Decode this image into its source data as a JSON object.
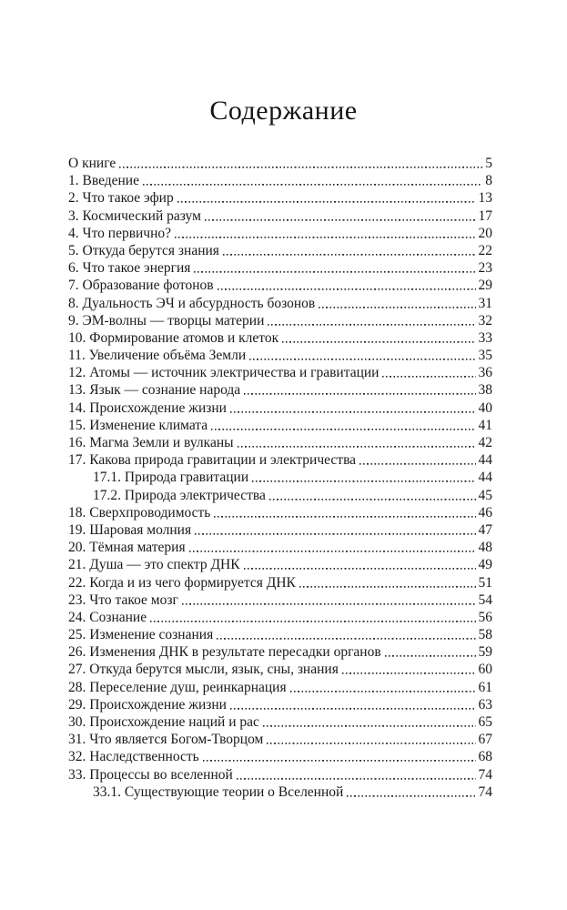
{
  "page": {
    "title": "Содержание"
  },
  "toc": {
    "entries": [
      {
        "label": "О книге",
        "page": "5",
        "indent": false
      },
      {
        "label": "1. Введение",
        "page": "8",
        "indent": false
      },
      {
        "label": "2. Что такое эфир",
        "page": "13",
        "indent": false
      },
      {
        "label": "3. Космический разум",
        "page": "17",
        "indent": false
      },
      {
        "label": "4. Что первично?",
        "page": "20",
        "indent": false
      },
      {
        "label": "5. Откуда берутся знания",
        "page": "22",
        "indent": false
      },
      {
        "label": "6. Что такое энергия",
        "page": "23",
        "indent": false
      },
      {
        "label": "7. Образование фотонов",
        "page": "29",
        "indent": false
      },
      {
        "label": "8. Дуальность ЭЧ и абсурдность бозонов",
        "page": "31",
        "indent": false
      },
      {
        "label": "9. ЭМ-волны — творцы материи",
        "page": "32",
        "indent": false
      },
      {
        "label": "10. Формирование атомов и клеток",
        "page": "33",
        "indent": false
      },
      {
        "label": "11. Увеличение объёма Земли",
        "page": "35",
        "indent": false
      },
      {
        "label": "12. Атомы — источник электричества и гравитации",
        "page": "36",
        "indent": false
      },
      {
        "label": "13. Язык — сознание народа",
        "page": "38",
        "indent": false
      },
      {
        "label": "14. Происхождение жизни",
        "page": "40",
        "indent": false
      },
      {
        "label": "15. Изменение климата",
        "page": "41",
        "indent": false
      },
      {
        "label": "16. Магма Земли и вулканы",
        "page": "42",
        "indent": false
      },
      {
        "label": "17. Какова природа гравитации и электричества",
        "page": "44",
        "indent": false
      },
      {
        "label": "17.1. Природа гравитации",
        "page": "44",
        "indent": true
      },
      {
        "label": "17.2. Природа электричества",
        "page": "45",
        "indent": true
      },
      {
        "label": "18. Сверхпроводимость",
        "page": "46",
        "indent": false
      },
      {
        "label": "19. Шаровая молния",
        "page": "47",
        "indent": false
      },
      {
        "label": "20. Тёмная материя",
        "page": "48",
        "indent": false
      },
      {
        "label": "21. Душа — это спектр ДНК",
        "page": "49",
        "indent": false
      },
      {
        "label": "22. Когда и из чего формируется ДНК",
        "page": "51",
        "indent": false
      },
      {
        "label": "23. Что такое мозг",
        "page": "54",
        "indent": false
      },
      {
        "label": "24. Сознание",
        "page": "56",
        "indent": false
      },
      {
        "label": "25. Изменение сознания",
        "page": "58",
        "indent": false
      },
      {
        "label": "26. Изменения ДНК в результате пересадки органов",
        "page": "59",
        "indent": false
      },
      {
        "label": "27. Откуда берутся мысли, язык, сны, знания",
        "page": "60",
        "indent": false
      },
      {
        "label": "28. Переселение душ, реинкарнация",
        "page": "61",
        "indent": false
      },
      {
        "label": "29. Происхождение жизни",
        "page": "63",
        "indent": false
      },
      {
        "label": "30. Происхождение наций и рас",
        "page": "65",
        "indent": false
      },
      {
        "label": "31. Что является Богом-Творцом",
        "page": "67",
        "indent": false
      },
      {
        "label": "32. Наследственность",
        "page": "68",
        "indent": false
      },
      {
        "label": "33. Процессы во вселенной",
        "page": "74",
        "indent": false
      },
      {
        "label": "33.1. Существующие теории о Вселенной",
        "page": "74",
        "indent": true
      }
    ]
  }
}
